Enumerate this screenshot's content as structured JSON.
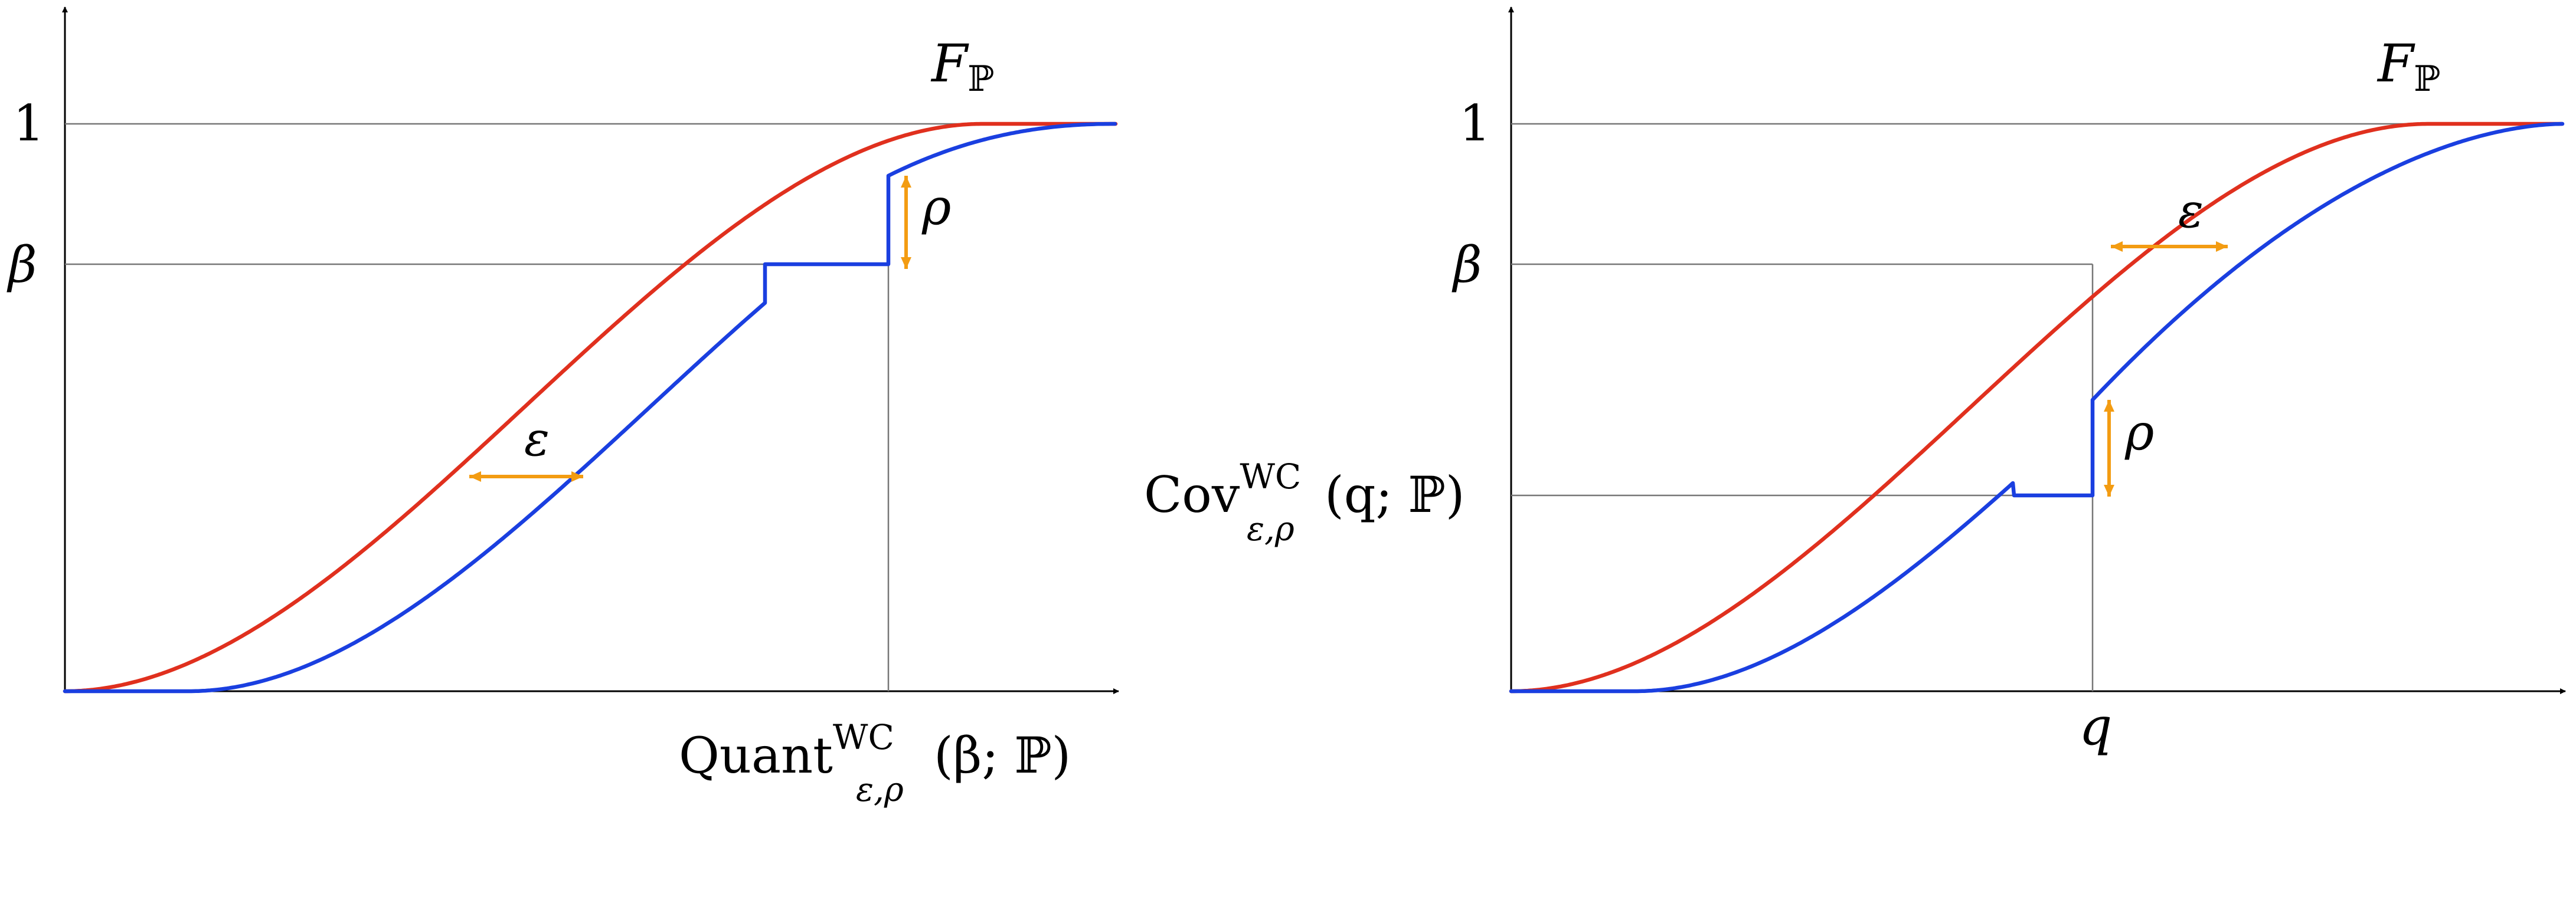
{
  "colors": {
    "red_curve": "#e0301e",
    "blue_curve": "#1a3fe0",
    "arrow": "#f39c12",
    "axis": "#000000",
    "guide": "#777777"
  },
  "panels": [
    {
      "id": "left",
      "curve_label": "F",
      "curve_label_sub": "ℙ",
      "y_tick_top": "1",
      "y_tick_beta": "β",
      "epsilon_label": "ε",
      "rho_label": "ρ",
      "x_label": {
        "main": "Quant",
        "sup": "WC",
        "sub": "ε,ρ",
        "args": "(β; ℙ)"
      }
    },
    {
      "id": "right",
      "curve_label": "F",
      "curve_label_sub": "ℙ",
      "y_tick_top": "1",
      "y_tick_beta": "β",
      "epsilon_label": "ε",
      "rho_label": "ρ",
      "y_label": {
        "main": "Cov",
        "sup": "WC",
        "sub": "ε,ρ",
        "args": "(q; ℙ)"
      },
      "x_label": {
        "main": "q"
      }
    }
  ]
}
